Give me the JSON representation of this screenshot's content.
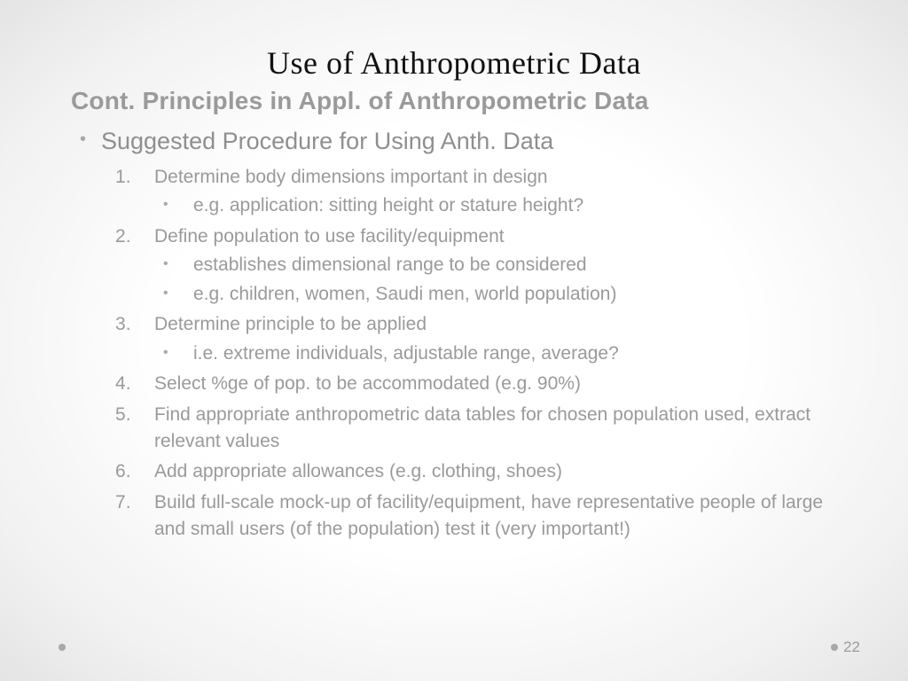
{
  "slide": {
    "title": "Use of Anthropometric Data",
    "subtitle": "Cont. Principles in Appl. of Anthropometric Data",
    "bullet_main": "Suggested Procedure for Using Anth. Data",
    "steps": [
      {
        "text": "Determine body dimensions important in design",
        "sub": [
          "e.g. application: sitting height or stature height?"
        ]
      },
      {
        "text": "Define population to use facility/equipment",
        "sub": [
          "establishes dimensional range to be considered",
          "e.g. children, women, Saudi men, world population)"
        ]
      },
      {
        "text": "Determine principle to be applied",
        "sub": [
          "i.e. extreme individuals, adjustable range, average?"
        ]
      },
      {
        "text": "Select %ge of pop. to be accommodated (e.g. 90%)",
        "sub": []
      },
      {
        "text": "Find appropriate anthropometric data tables for chosen population used, extract relevant values",
        "sub": []
      },
      {
        "text": "Add appropriate allowances (e.g. clothing, shoes)",
        "sub": []
      },
      {
        "text": "Build full-scale mock-up of facility/equipment, have representative people of large and small users (of the population) test it (very important!)",
        "sub": []
      }
    ],
    "page_number": "22"
  },
  "style": {
    "title_font": "Book Antiqua",
    "body_font": "Century Gothic",
    "title_color": "#111111",
    "body_color": "#9a9a9a",
    "bullet_color": "#a8a8a8",
    "background_center": "#ffffff",
    "background_edge": "#e4e4e4",
    "title_fontsize_pt": 28,
    "subtitle_fontsize_pt": 21,
    "main_bullet_fontsize_pt": 20,
    "body_fontsize_pt": 16
  }
}
